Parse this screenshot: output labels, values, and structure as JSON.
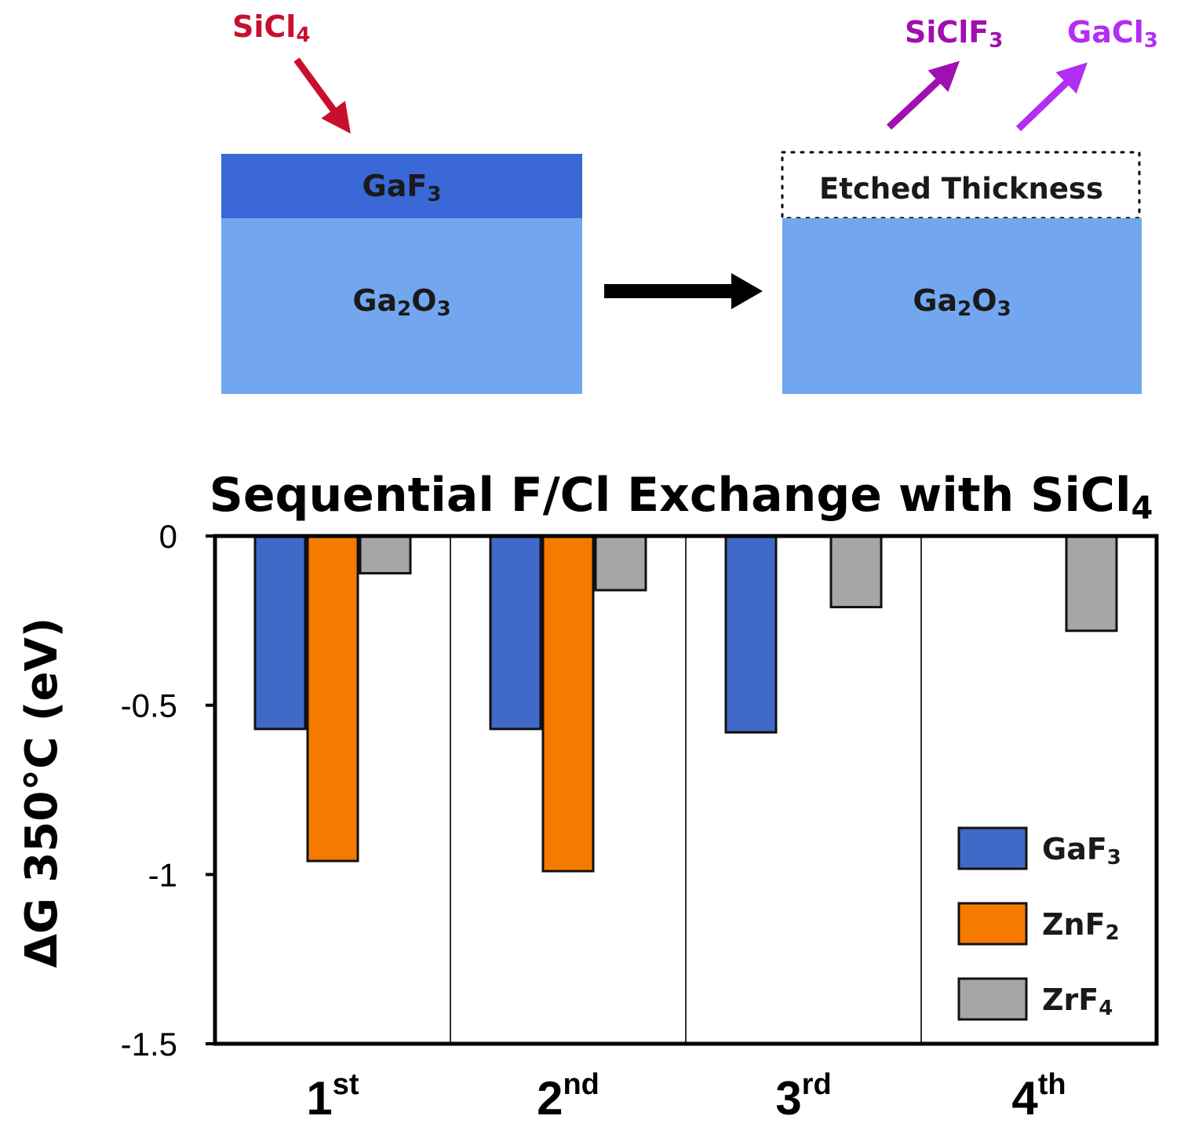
{
  "diagram": {
    "left_gas": "SiCl",
    "left_gas_sub": "4",
    "right_gas_1": "SiClF",
    "right_gas_1_sub": "3",
    "right_gas_2": "GaCl",
    "right_gas_2_sub": "3",
    "layer_top": "GaF",
    "layer_top_sub": "3",
    "substrate_left": "Ga",
    "substrate_left_sub1": "2",
    "substrate_left_mid": "O",
    "substrate_left_sub2": "3",
    "etched_label": "Etched Thickness",
    "substrate_right": "Ga",
    "substrate_right_sub1": "2",
    "substrate_right_mid": "O",
    "substrate_right_sub2": "3",
    "colors": {
      "layer_top": "#3a68d6",
      "substrate": "#72a7f0",
      "left_gas": "#c8102e",
      "right_gas_1": "#a00fb0",
      "right_gas_2": "#b32df2",
      "process_arrow": "#000000"
    }
  },
  "chart_data": {
    "type": "bar",
    "title": "Sequential F/Cl Exchange with SiCl",
    "title_sub": "4",
    "ylabel": "ΔG 350°C (eV)",
    "xlabel": "",
    "ylim": [
      -1.5,
      0
    ],
    "yticks": [
      0,
      -0.5,
      -1,
      -1.5
    ],
    "ytick_labels": [
      "0",
      "-0.5",
      "-1",
      "-1.5"
    ],
    "categories": [
      {
        "main": "1",
        "sup": "st"
      },
      {
        "main": "2",
        "sup": "nd"
      },
      {
        "main": "3",
        "sup": "rd"
      },
      {
        "main": "4",
        "sup": "th"
      }
    ],
    "series": [
      {
        "name": "GaF",
        "name_sub": "3",
        "color": "#4169c8",
        "values": [
          -0.57,
          -0.57,
          -0.58,
          null
        ]
      },
      {
        "name": "ZnF",
        "name_sub": "2",
        "color": "#f77a00",
        "values": [
          -0.96,
          -0.99,
          null,
          null
        ]
      },
      {
        "name": "ZrF",
        "name_sub": "4",
        "color": "#a6a6a6",
        "values": [
          -0.11,
          -0.16,
          -0.21,
          -0.28
        ]
      }
    ],
    "legend_position": "bottom-right",
    "grid": false
  }
}
